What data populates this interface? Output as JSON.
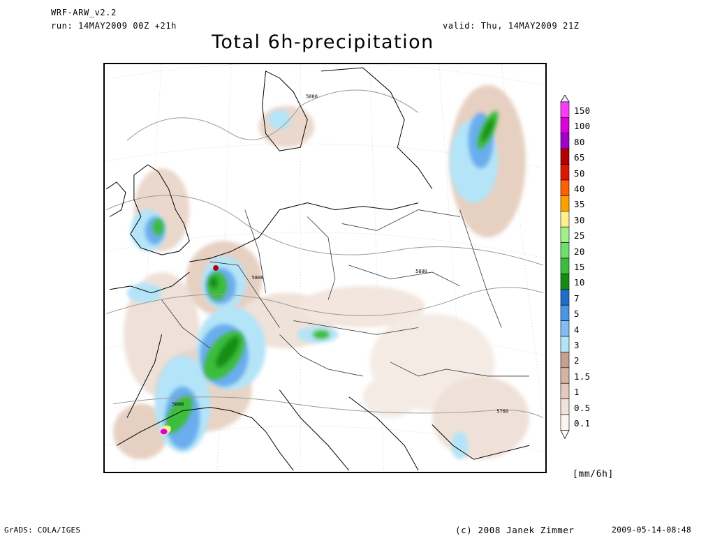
{
  "header": {
    "model": "WRF-ARW_v2.2",
    "run": "run: 14MAY2009 00Z +21h",
    "valid": "valid: Thu, 14MAY2009 21Z",
    "title": "Total 6h-precipitation"
  },
  "map": {
    "contour_labels": [
      "5800",
      "5800",
      "5800",
      "5800",
      "5760"
    ],
    "background": "#ffffff",
    "coast_color": "#000000",
    "border_color": "#333333",
    "contour_color": "#999999"
  },
  "legend": {
    "unit": "[mm/6h]",
    "levels": [
      "150",
      "100",
      "80",
      "65",
      "50",
      "40",
      "35",
      "30",
      "25",
      "20",
      "15",
      "10",
      "7",
      "5",
      "4",
      "3",
      "2",
      "1.5",
      "1",
      "0.5",
      "0.1"
    ],
    "colors": [
      "#fa3cfa",
      "#dc00dc",
      "#a000c8",
      "#b40000",
      "#e11400",
      "#ff6000",
      "#ffa000",
      "#fff08c",
      "#a0f08c",
      "#6fe06f",
      "#3cbc3c",
      "#128d12",
      "#1e6ecc",
      "#4a96e6",
      "#82bcf0",
      "#b4e4f8",
      "#c69f8f",
      "#d4b4a4",
      "#e2cbbd",
      "#f2e3da",
      "#fbf5f1"
    ]
  },
  "footer": {
    "left": "GrADS: COLA/IGES",
    "copyright": "(c) 2008 Janek Zimmer",
    "timestamp": "2009-05-14-08:48"
  }
}
